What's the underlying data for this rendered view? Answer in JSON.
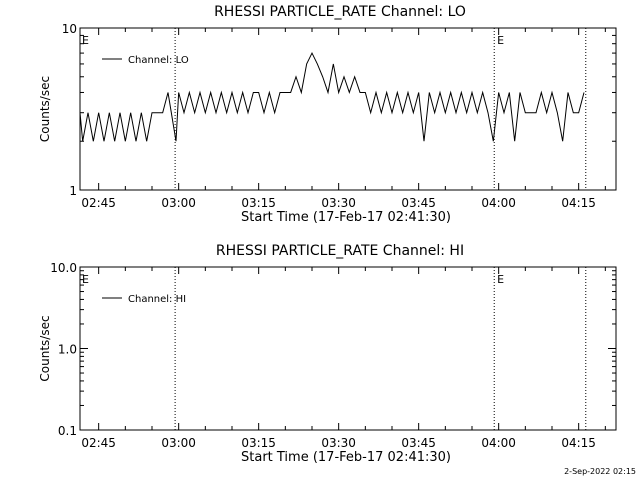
{
  "chart_data": [
    {
      "type": "line",
      "title": "RHESSI PARTICLE_RATE Channel: LO",
      "xlabel": "Start Time (17-Feb-17 02:41:30)",
      "ylabel": "Counts/sec",
      "yscale": "log",
      "ylim": [
        1,
        10
      ],
      "ytick_labels": [
        "10",
        "1"
      ],
      "xlim": [
        "02:41:30",
        "04:22:00"
      ],
      "xtick_labels": [
        "02:45",
        "03:00",
        "03:15",
        "03:30",
        "03:45",
        "04:00",
        "04:15"
      ],
      "legend": {
        "placement": "top-left",
        "entries": [
          "Channel: LO"
        ]
      },
      "event_lines": [
        "02:59:20",
        "03:59:10",
        "04:16:20"
      ],
      "event_labels": [
        {
          "text": "E",
          "at": "02:41:30"
        },
        {
          "text": "E",
          "at": "03:59:20"
        }
      ],
      "series": [
        {
          "name": "Channel: LO",
          "x": [
            "02:41:30",
            "02:42:00",
            "02:43:00",
            "02:44:00",
            "02:45:00",
            "02:46:00",
            "02:47:00",
            "02:48:00",
            "02:49:00",
            "02:50:00",
            "02:51:00",
            "02:52:00",
            "02:53:00",
            "02:54:00",
            "02:55:00",
            "02:56:00",
            "02:57:00",
            "02:58:00",
            "02:59:30",
            "03:00:00",
            "03:01:00",
            "03:02:00",
            "03:03:00",
            "03:04:00",
            "03:05:00",
            "03:06:00",
            "03:07:00",
            "03:08:00",
            "03:09:00",
            "03:10:00",
            "03:11:00",
            "03:12:00",
            "03:13:00",
            "03:14:00",
            "03:15:00",
            "03:16:00",
            "03:17:00",
            "03:18:00",
            "03:19:00",
            "03:20:00",
            "03:21:00",
            "03:22:00",
            "03:23:00",
            "03:24:00",
            "03:25:00",
            "03:26:00",
            "03:27:00",
            "03:28:00",
            "03:29:00",
            "03:30:00",
            "03:31:00",
            "03:32:00",
            "03:33:00",
            "03:34:00",
            "03:35:00",
            "03:36:00",
            "03:37:00",
            "03:38:00",
            "03:39:00",
            "03:40:00",
            "03:41:00",
            "03:42:00",
            "03:43:00",
            "03:44:00",
            "03:45:00",
            "03:46:00",
            "03:47:00",
            "03:48:00",
            "03:49:00",
            "03:50:00",
            "03:51:00",
            "03:52:00",
            "03:53:00",
            "03:54:00",
            "03:55:00",
            "03:56:00",
            "03:57:00",
            "03:58:00",
            "03:59:00",
            "04:00:00",
            "04:01:00",
            "04:02:00",
            "04:03:00",
            "04:04:00",
            "04:05:00",
            "04:06:00",
            "04:07:00",
            "04:08:00",
            "04:09:00",
            "04:10:00",
            "04:11:00",
            "04:12:00",
            "04:13:00",
            "04:14:00",
            "04:15:00",
            "04:16:00"
          ],
          "values": [
            3,
            2,
            3,
            2,
            3,
            2,
            3,
            2,
            3,
            2,
            3,
            2,
            3,
            2,
            3,
            3,
            3,
            4,
            2,
            4,
            3,
            4,
            3,
            4,
            3,
            4,
            3,
            4,
            3,
            4,
            3,
            4,
            3,
            4,
            4,
            3,
            4,
            3,
            4,
            4,
            4,
            5,
            4,
            6,
            7,
            6,
            5,
            4,
            6,
            4,
            5,
            4,
            5,
            4,
            4,
            3,
            4,
            3,
            4,
            3,
            4,
            3,
            4,
            3,
            4,
            2,
            4,
            3,
            4,
            3,
            4,
            3,
            4,
            3,
            4,
            3,
            4,
            3,
            2,
            4,
            3,
            4,
            2,
            4,
            3,
            3,
            3,
            4,
            3,
            4,
            3,
            2,
            4,
            3,
            3,
            4
          ]
        }
      ]
    },
    {
      "type": "line",
      "title": "RHESSI PARTICLE_RATE Channel: HI",
      "xlabel": "Start Time (17-Feb-17 02:41:30)",
      "ylabel": "Counts/sec",
      "yscale": "log",
      "ylim": [
        0.1,
        10
      ],
      "ytick_labels": [
        "10.0",
        "1.0",
        "0.1"
      ],
      "xlim": [
        "02:41:30",
        "04:22:00"
      ],
      "xtick_labels": [
        "02:45",
        "03:00",
        "03:15",
        "03:30",
        "03:45",
        "04:00",
        "04:15"
      ],
      "legend": {
        "placement": "top-left",
        "entries": [
          "Channel: HI"
        ]
      },
      "event_lines": [
        "02:59:20",
        "03:59:10",
        "04:16:20"
      ],
      "event_labels": [
        {
          "text": "E",
          "at": "02:41:30"
        },
        {
          "text": "E",
          "at": "03:59:20"
        }
      ],
      "series": [
        {
          "name": "Channel: HI",
          "x": [],
          "values": []
        }
      ]
    }
  ],
  "footer": {
    "stamp": "2-Sep-2022 02:15"
  }
}
